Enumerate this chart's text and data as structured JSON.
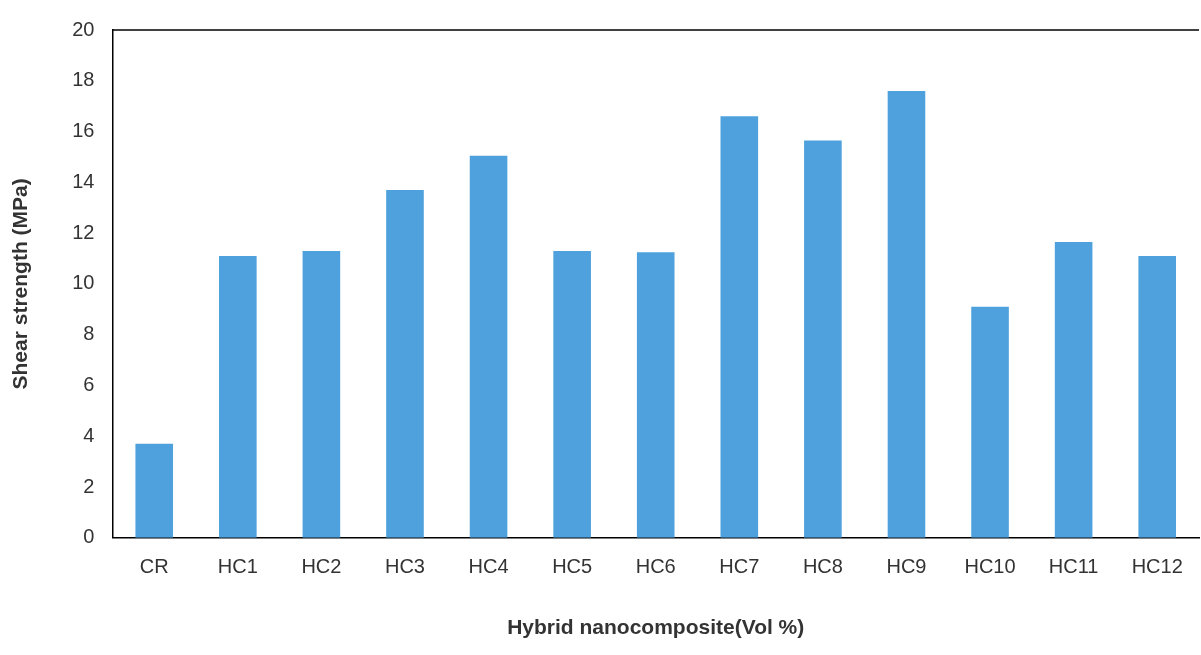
{
  "chart_data": {
    "type": "bar",
    "xlabel": "Hybrid nanocomposite(Vol %)",
    "ylabel": "Shear strength (MPa)",
    "categories": [
      "CR",
      "HC1",
      "HC2",
      "HC3",
      "HC4",
      "HC5",
      "HC6",
      "HC7",
      "HC8",
      "HC9",
      "HC10",
      "HC11",
      "HC12"
    ],
    "values": [
      3.7,
      11.1,
      11.3,
      13.7,
      15.05,
      11.3,
      11.25,
      16.6,
      15.65,
      17.6,
      9.1,
      11.65,
      11.1
    ],
    "color": "#4ea1dd",
    "ylim": [
      0,
      20
    ],
    "yticks": [
      0,
      2,
      4,
      6,
      8,
      10,
      12,
      14,
      16,
      18,
      20
    ],
    "grid": false,
    "legend": false
  }
}
